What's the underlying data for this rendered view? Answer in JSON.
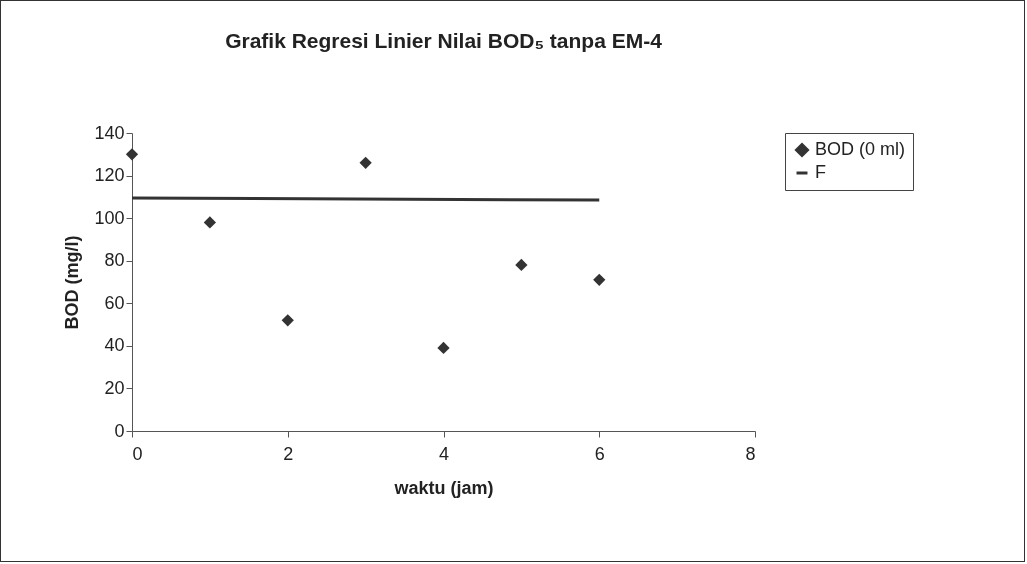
{
  "chart_data": {
    "type": "scatter",
    "title": "Grafik Regresi Linier Nilai BOD₅ tanpa EM-4",
    "xlabel": "waktu (jam)",
    "ylabel": "BOD (mg/l)",
    "xlim": [
      0,
      8
    ],
    "xticks": [
      0,
      2,
      4,
      6,
      8
    ],
    "ylim": [
      0,
      140
    ],
    "yticks": [
      0,
      20,
      40,
      60,
      80,
      100,
      120,
      140
    ],
    "grid": false,
    "legend": "right",
    "series": [
      {
        "name": "BOD (0 ml)",
        "marker": "diamond",
        "color": "#333333",
        "x": [
          0,
          1,
          2,
          3,
          4,
          5,
          6
        ],
        "values": [
          130,
          98,
          52,
          126,
          39,
          78,
          71
        ]
      },
      {
        "name": "F",
        "type": "line",
        "color": "#333333",
        "x": [
          0,
          6
        ],
        "values": [
          109.5,
          108.5
        ]
      }
    ]
  }
}
